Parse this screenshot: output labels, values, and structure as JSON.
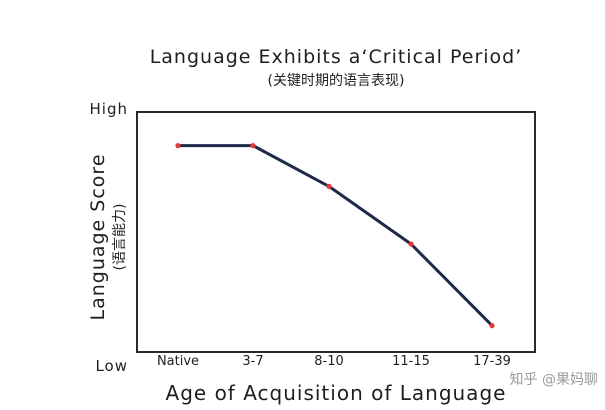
{
  "chart_data": {
    "type": "line",
    "title": "Language Exhibits a‘Critical Period’",
    "subtitle": "(关键时期的语言表现)",
    "xlabel": "Age of Acquisition of Language",
    "ylabel": "Language Score",
    "ylabel_sub": "(语言能力)",
    "ytick_high": "High",
    "ytick_low": "Low",
    "categories": [
      "Native",
      "3-7",
      "8-10",
      "11-15",
      "17-39"
    ],
    "series": [
      {
        "values": [
          0.86,
          0.86,
          0.69,
          0.45,
          0.11
        ]
      }
    ],
    "ylim": [
      0,
      1
    ],
    "grid": false,
    "line_color": "#1f2a4a",
    "marker_color": "#e03a3a"
  },
  "watermark": "知乎 @果妈聊"
}
